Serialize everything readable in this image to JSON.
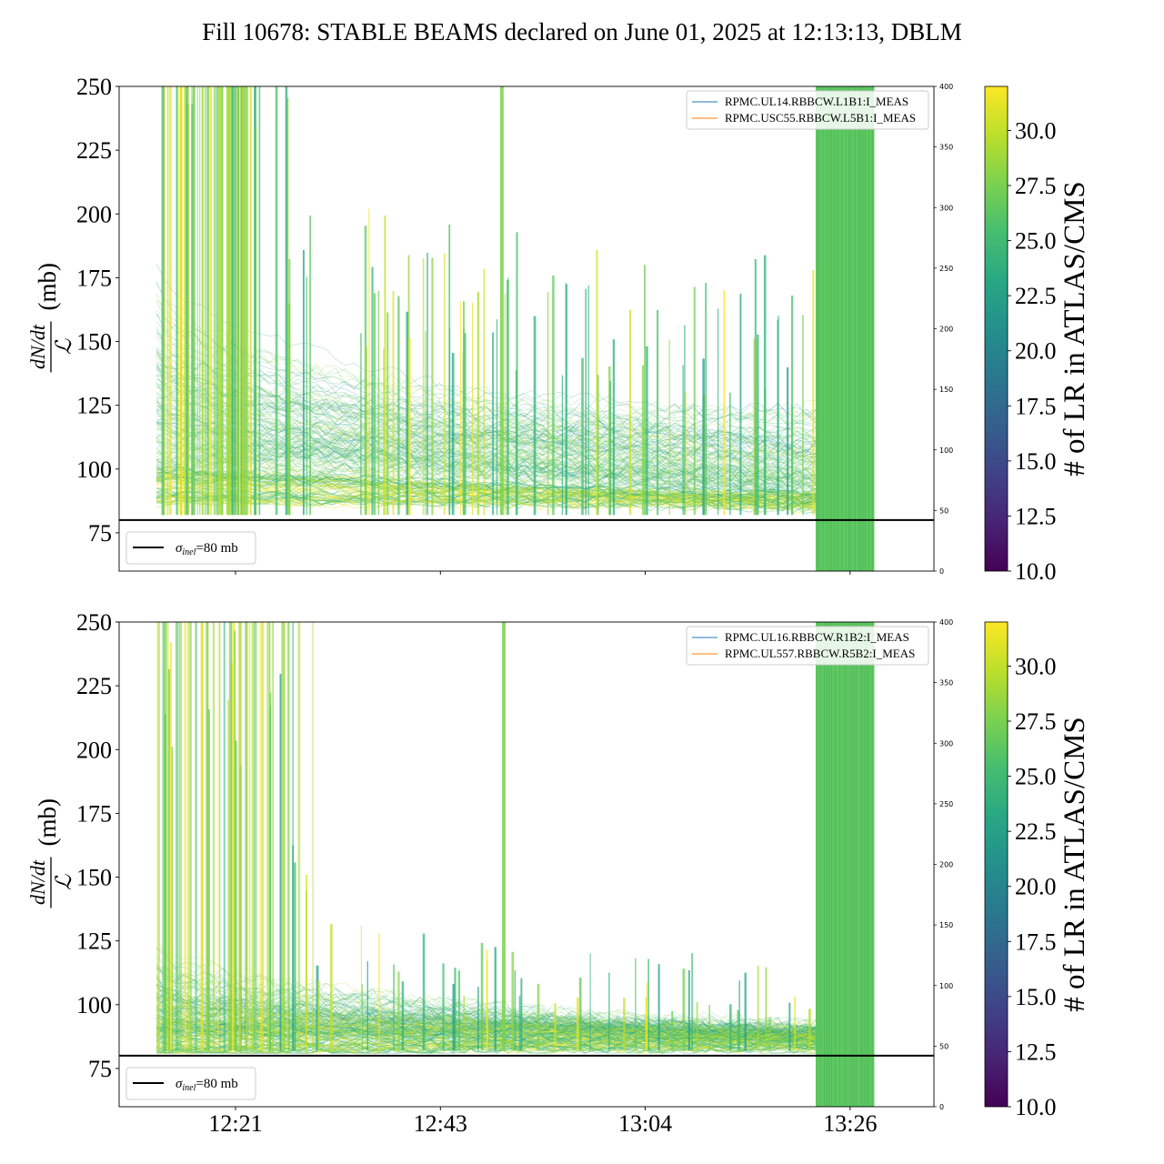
{
  "title": "Fill 10678: STABLE BEAMS declared on June 01, 2025 at 12:13:13, DBLM",
  "chart_data": [
    {
      "type": "line",
      "ylabel_fraction": {
        "numerator": "dN/dt",
        "denominator": "ℒ",
        "unit": "(mb)"
      },
      "ylim": [
        60,
        250
      ],
      "yticks": [
        "75",
        "100",
        "125",
        "150",
        "175",
        "200",
        "225",
        "250"
      ],
      "xticks": [
        {
          "t": 8,
          "label": "12:21"
        },
        {
          "t": 30,
          "label": "12:43"
        },
        {
          "t": 52,
          "label": "13:04"
        },
        {
          "t": 74,
          "label": "13:26"
        }
      ],
      "xlim": [
        -4.5,
        83
      ],
      "show_xtick_labels": false,
      "secondary_y": {
        "ylim": [
          0,
          400
        ],
        "ticks": [
          "0",
          "50",
          "100",
          "150",
          "200",
          "250",
          "300",
          "350",
          "400"
        ]
      },
      "legend_series": [
        {
          "name": "RPMC.UL14.RBBCW.L1B1:I_MEAS",
          "color": "#1f77b4"
        },
        {
          "name": "RPMC.USC55.RBBCW.L5B1:I_MEAS",
          "color": "#ff7f0e"
        }
      ],
      "reference_line": {
        "y": 80,
        "label": "σinel=80 mb",
        "sym": "σ",
        "sub": "inel",
        "rest": "=80 mb",
        "color": "#000000"
      },
      "envelope": {
        "t_start": -0.5,
        "t_end": 70.3,
        "start_level": 168,
        "end_level": 122,
        "base_start": 95,
        "base_end": 88
      },
      "current_block": {
        "t_start": 70.3,
        "t_end": 76.6,
        "color": "#5ec962"
      },
      "colorbar": {
        "label": "# of LR in ATLAS/CMS",
        "min": 10,
        "max": 32,
        "ticks": [
          "10.0",
          "12.5",
          "15.0",
          "17.5",
          "20.0",
          "22.5",
          "25.0",
          "27.5",
          "30.0"
        ]
      }
    },
    {
      "type": "line",
      "ylabel_fraction": {
        "numerator": "dN/dt",
        "denominator": "ℒ",
        "unit": "(mb)"
      },
      "ylim": [
        60,
        250
      ],
      "yticks": [
        "75",
        "100",
        "125",
        "150",
        "175",
        "200",
        "225",
        "250"
      ],
      "xticks": [
        {
          "t": 8,
          "label": "12:21"
        },
        {
          "t": 30,
          "label": "12:43"
        },
        {
          "t": 52,
          "label": "13:04"
        },
        {
          "t": 74,
          "label": "13:26"
        }
      ],
      "xlim": [
        -4.5,
        83
      ],
      "show_xtick_labels": true,
      "secondary_y": {
        "ylim": [
          0,
          400
        ],
        "ticks": [
          "0",
          "50",
          "100",
          "150",
          "200",
          "250",
          "300",
          "350",
          "400"
        ]
      },
      "legend_series": [
        {
          "name": "RPMC.UL16.RBBCW.R1B2:I_MEAS",
          "color": "#1f77b4"
        },
        {
          "name": "RPMC.UL557.RBBCW.R5B2:I_MEAS",
          "color": "#ff7f0e"
        }
      ],
      "reference_line": {
        "y": 80,
        "label": "σinel=80 mb",
        "sym": "σ",
        "sub": "inel",
        "rest": "=80 mb",
        "color": "#000000"
      },
      "envelope": {
        "t_start": -0.5,
        "t_end": 70.3,
        "start_level": 120,
        "end_level": 92,
        "base_start": 88,
        "base_end": 86
      },
      "current_block": {
        "t_start": 70.3,
        "t_end": 76.6,
        "color": "#5ec962"
      },
      "colorbar": {
        "label": "# of LR in ATLAS/CMS",
        "min": 10,
        "max": 32,
        "ticks": [
          "10.0",
          "12.5",
          "15.0",
          "17.5",
          "20.0",
          "22.5",
          "25.0",
          "27.5",
          "30.0"
        ]
      }
    }
  ]
}
